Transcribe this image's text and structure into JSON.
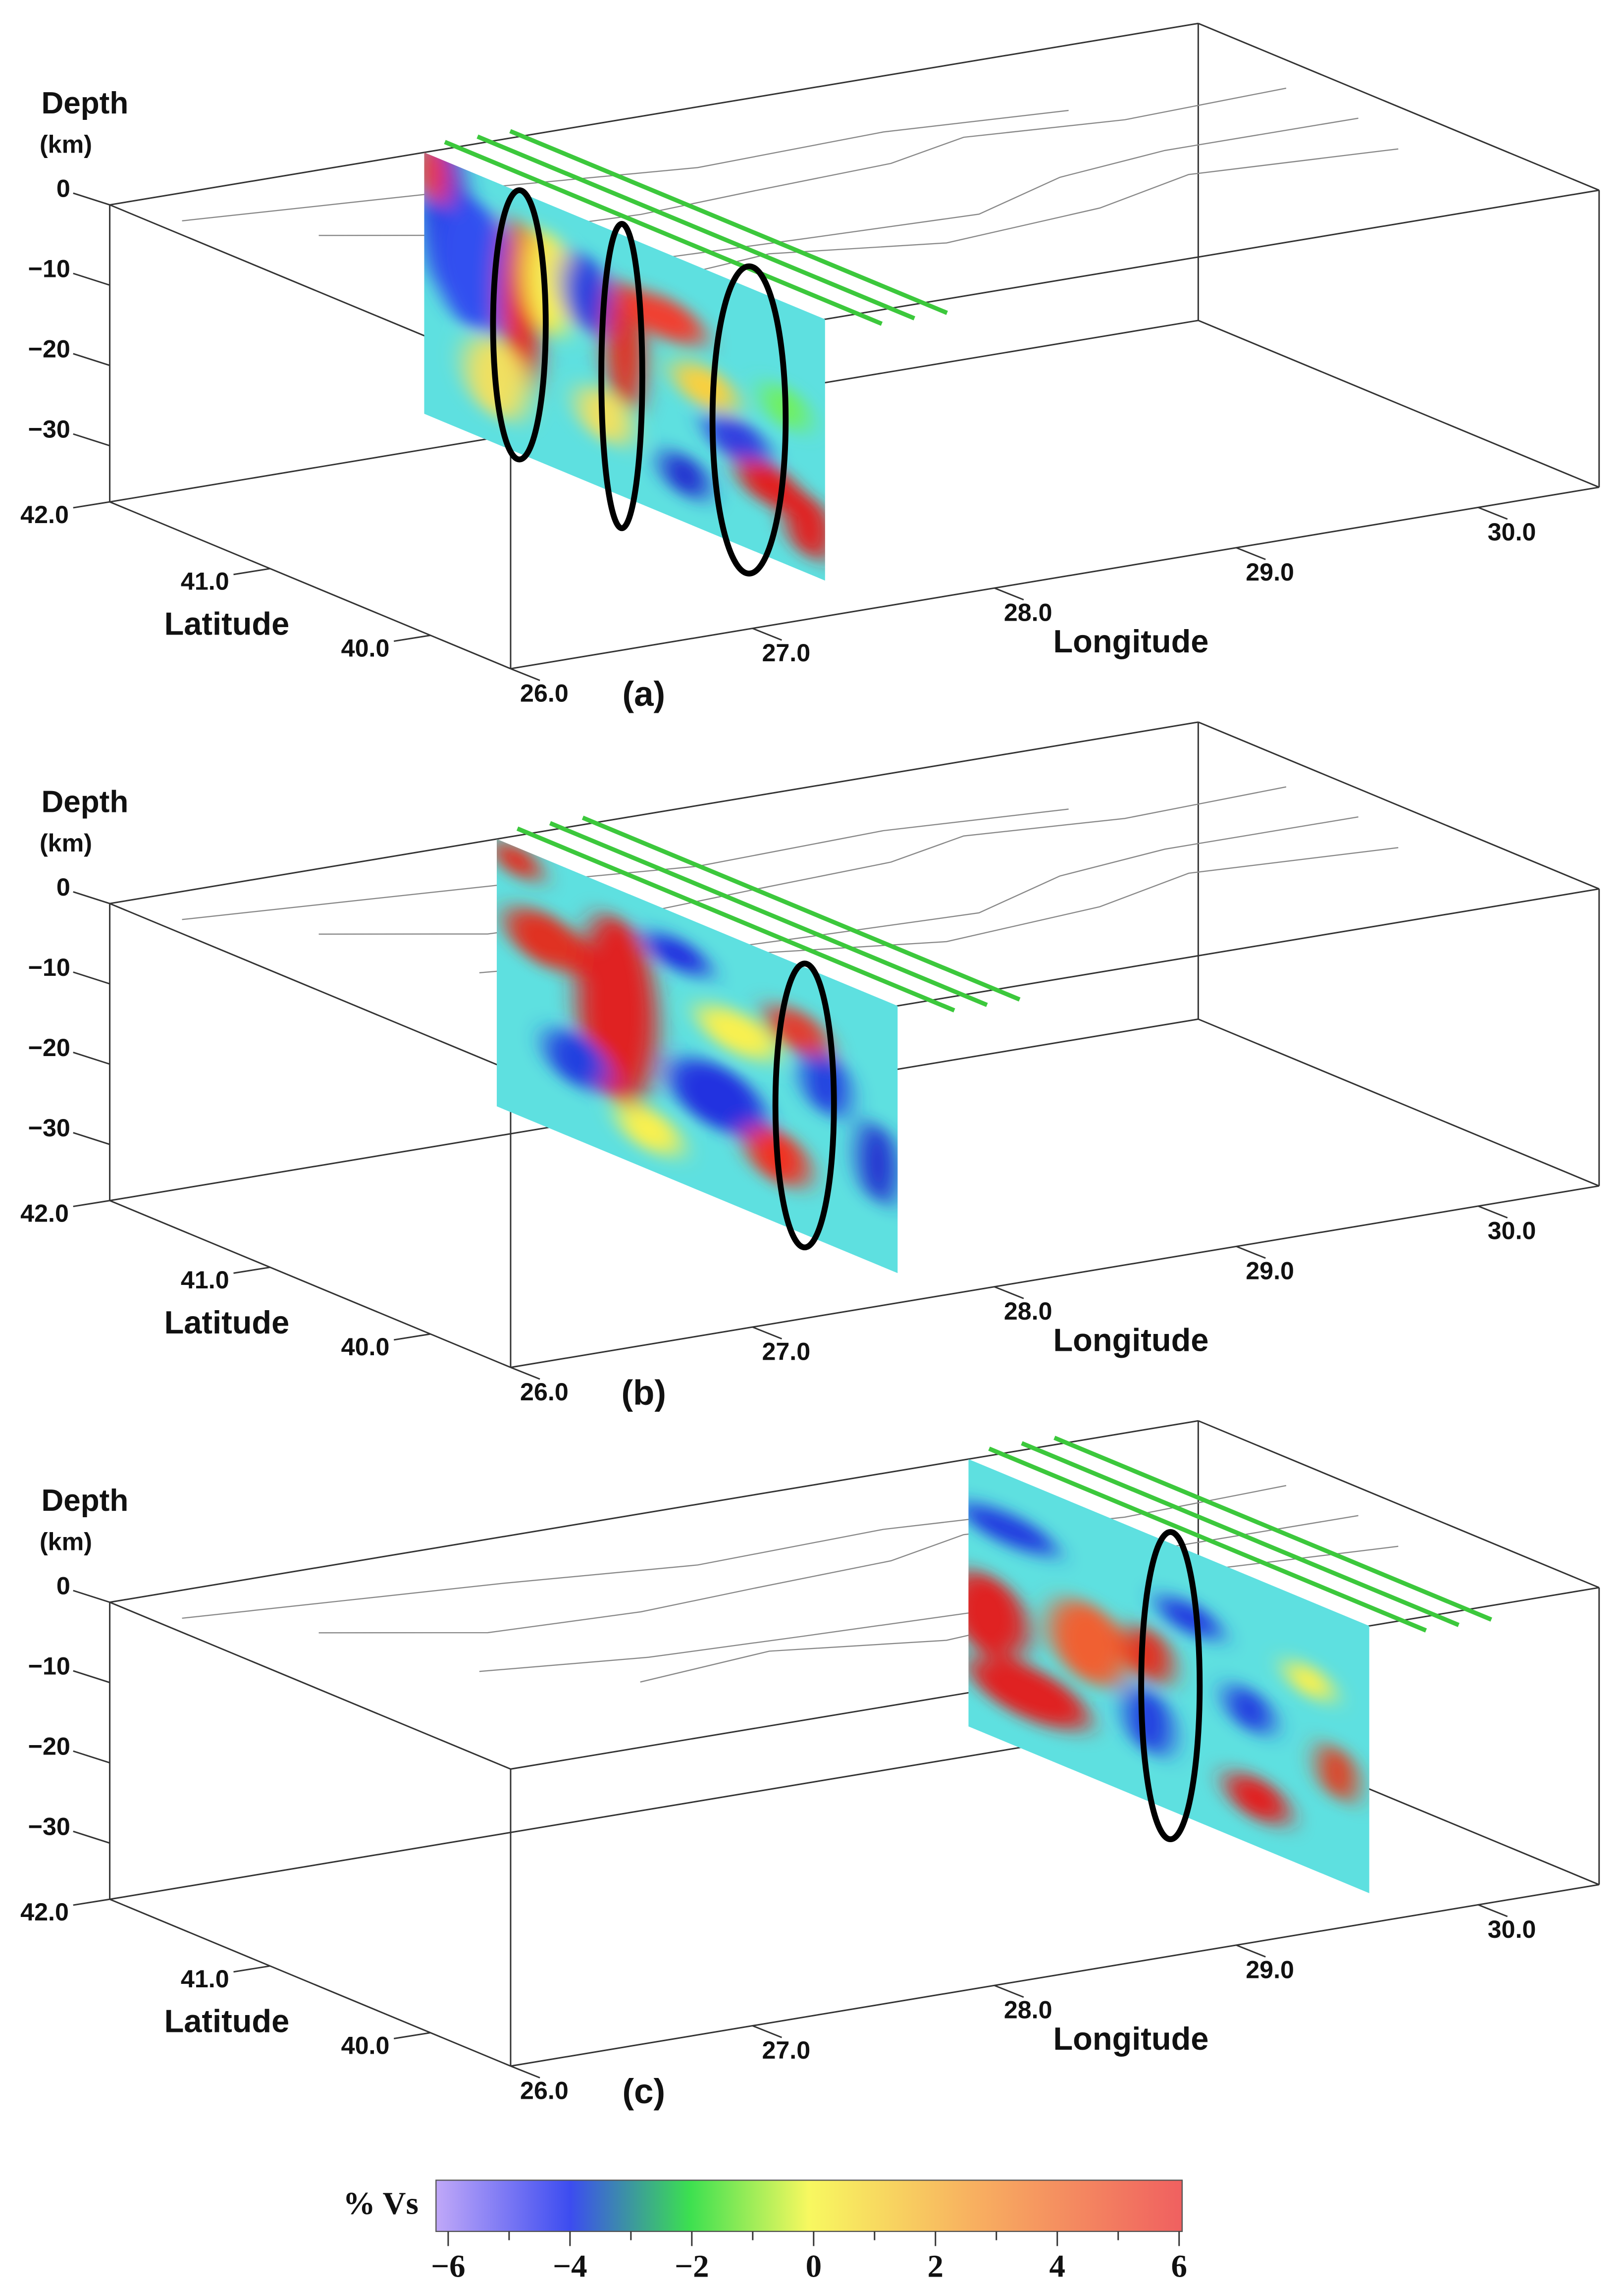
{
  "chart_data": [
    {
      "type": "block3d",
      "label": "(a)",
      "zlabel": "Depth",
      "zunit": "(km)",
      "xlabel": "Longitude",
      "ylabel": "Latitude",
      "xlim": [
        26,
        30.5
      ],
      "ylim": [
        42,
        39.5
      ],
      "zlim": [
        0,
        -37
      ],
      "xticks": [
        {
          "value": 26,
          "label": "26.0"
        },
        {
          "value": 27,
          "label": "27.0"
        },
        {
          "value": 28,
          "label": "28.0"
        },
        {
          "value": 29,
          "label": "29.0"
        },
        {
          "value": 30,
          "label": "30.0"
        }
      ],
      "yticks": [
        {
          "value": 42,
          "label": "42.0"
        },
        {
          "value": 41,
          "label": "41.0"
        },
        {
          "value": 40,
          "label": "40.0"
        }
      ],
      "zticks": [
        0,
        {
          "value": -10,
          "label": "−10"
        },
        {
          "value": -20,
          "label": "−20"
        },
        {
          "value": -30,
          "label": "−30"
        }
      ]
    },
    {
      "type": "block3d",
      "label": "(b)",
      "zlabel": "Depth",
      "zunit": "(km)",
      "xlabel": "Longitude",
      "ylabel": "Latitude",
      "xlim": [
        26,
        30.5
      ],
      "ylim": [
        42,
        39.5
      ],
      "zlim": [
        0,
        -37
      ],
      "xticks": [
        {
          "value": 26,
          "label": "26.0"
        },
        {
          "value": 27,
          "label": "27.0"
        },
        {
          "value": 28,
          "label": "28.0"
        },
        {
          "value": 29,
          "label": "29.0"
        },
        {
          "value": 30,
          "label": "30.0"
        }
      ],
      "yticks": [
        {
          "value": 42,
          "label": "42.0"
        },
        {
          "value": 41,
          "label": "41.0"
        },
        {
          "value": 40,
          "label": "40.0"
        }
      ],
      "zticks": [
        0,
        {
          "value": -10,
          "label": "−10"
        },
        {
          "value": -20,
          "label": "−20"
        },
        {
          "value": -30,
          "label": "−30"
        }
      ]
    },
    {
      "type": "block3d",
      "label": "(c)",
      "zlabel": "Depth",
      "zunit": "(km)",
      "xlabel": "Longitude",
      "ylabel": "Latitude",
      "xlim": [
        26,
        30.5
      ],
      "ylim": [
        42,
        39.5
      ],
      "zlim": [
        0,
        -37
      ],
      "xticks": [
        {
          "value": 26,
          "label": "26.0"
        },
        {
          "value": 27,
          "label": "27.0"
        },
        {
          "value": 28,
          "label": "28.0"
        },
        {
          "value": 29,
          "label": "29.0"
        },
        {
          "value": 30,
          "label": "30.0"
        }
      ],
      "yticks": [
        {
          "value": 42,
          "label": "42.0"
        },
        {
          "value": 41,
          "label": "41.0"
        },
        {
          "value": 40,
          "label": "40.0"
        }
      ],
      "zticks": [
        0,
        {
          "value": -10,
          "label": "−10"
        },
        {
          "value": -20,
          "label": "−20"
        },
        {
          "value": -30,
          "label": "−30"
        }
      ]
    }
  ],
  "colorbar": {
    "label": "% Vs",
    "lim": [
      -6.2,
      6.05
    ],
    "ticks": [
      {
        "value": -6,
        "label": "−6"
      },
      {
        "value": -4,
        "label": "−4"
      },
      {
        "value": -2,
        "label": "−2"
      },
      0,
      2,
      4,
      6
    ],
    "minor_ticks": [
      -5,
      -3,
      -1,
      1,
      3,
      5
    ]
  }
}
